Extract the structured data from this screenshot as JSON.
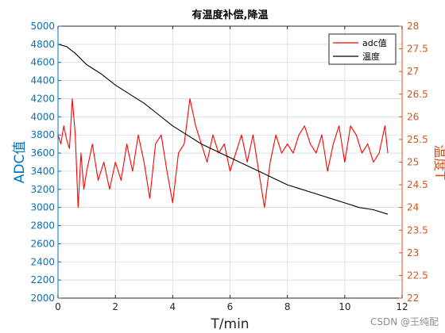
{
  "chart_data": {
    "type": "line",
    "title": "有温度补偿,降温",
    "xlabel": "T/min",
    "ylabel_left": "ADC值",
    "ylabel_right": "温度T",
    "xlim": [
      0,
      12
    ],
    "ylim_left": [
      2000,
      5000
    ],
    "ylim_right": [
      22,
      28
    ],
    "x_ticks": [
      0,
      2,
      4,
      6,
      8,
      10,
      12
    ],
    "y_left_ticks": [
      2000,
      2200,
      2400,
      2600,
      2800,
      3000,
      3200,
      3400,
      3600,
      3800,
      4000,
      4200,
      4400,
      4600,
      4800,
      5000
    ],
    "y_right_ticks": [
      22,
      22.5,
      23,
      23.5,
      24,
      24.5,
      25,
      25.5,
      26,
      26.5,
      27,
      27.5,
      28
    ],
    "grid": true,
    "legend_position": "top-right",
    "colors": {
      "adc": "#ff0000",
      "temp": "#000000",
      "left_axis": "#0072bd",
      "right_axis": "#d95319",
      "grid": "#d9e1ea"
    },
    "series": [
      {
        "name": "adc值",
        "axis": "left",
        "x": [
          0,
          0.1,
          0.2,
          0.3,
          0.4,
          0.5,
          0.6,
          0.7,
          0.8,
          0.9,
          1.0,
          1.2,
          1.4,
          1.6,
          1.8,
          2.0,
          2.2,
          2.4,
          2.6,
          2.8,
          3.0,
          3.2,
          3.4,
          3.6,
          3.8,
          4.0,
          4.2,
          4.4,
          4.6,
          4.8,
          5.0,
          5.2,
          5.4,
          5.6,
          5.8,
          6.0,
          6.2,
          6.4,
          6.6,
          6.8,
          7.0,
          7.2,
          7.4,
          7.6,
          7.8,
          8.0,
          8.2,
          8.4,
          8.6,
          8.8,
          9.0,
          9.2,
          9.4,
          9.6,
          9.8,
          10.0,
          10.2,
          10.4,
          10.6,
          10.8,
          11.0,
          11.2,
          11.4,
          11.5
        ],
        "values": [
          3800,
          3700,
          3900,
          3750,
          3650,
          4200,
          3800,
          3000,
          3600,
          3200,
          3400,
          3700,
          3300,
          3500,
          3200,
          3500,
          3300,
          3700,
          3400,
          3800,
          3500,
          3100,
          3700,
          3800,
          3400,
          3050,
          3600,
          3700,
          4200,
          3900,
          3700,
          3500,
          3800,
          3600,
          3700,
          3400,
          3600,
          3800,
          3500,
          3800,
          3400,
          3000,
          3500,
          3800,
          3600,
          3700,
          3600,
          3800,
          3900,
          3700,
          3600,
          3800,
          3400,
          3700,
          3900,
          3500,
          3900,
          3800,
          3600,
          3700,
          3500,
          3600,
          3900,
          3600
        ]
      },
      {
        "name": "温度",
        "axis": "right",
        "x": [
          0,
          0.3,
          0.6,
          1.0,
          1.5,
          2.0,
          2.5,
          3.0,
          3.5,
          4.0,
          4.5,
          5.0,
          5.5,
          6.0,
          6.5,
          7.0,
          7.5,
          8.0,
          8.5,
          9.0,
          9.5,
          10.0,
          10.5,
          11.0,
          11.5
        ],
        "values": [
          27.6,
          27.55,
          27.4,
          27.15,
          26.95,
          26.7,
          26.5,
          26.3,
          26.05,
          25.8,
          25.6,
          25.4,
          25.25,
          25.1,
          24.95,
          24.8,
          24.65,
          24.5,
          24.4,
          24.3,
          24.2,
          24.1,
          24.0,
          23.95,
          23.85
        ]
      }
    ]
  },
  "watermark": "CSDN @王纯配"
}
